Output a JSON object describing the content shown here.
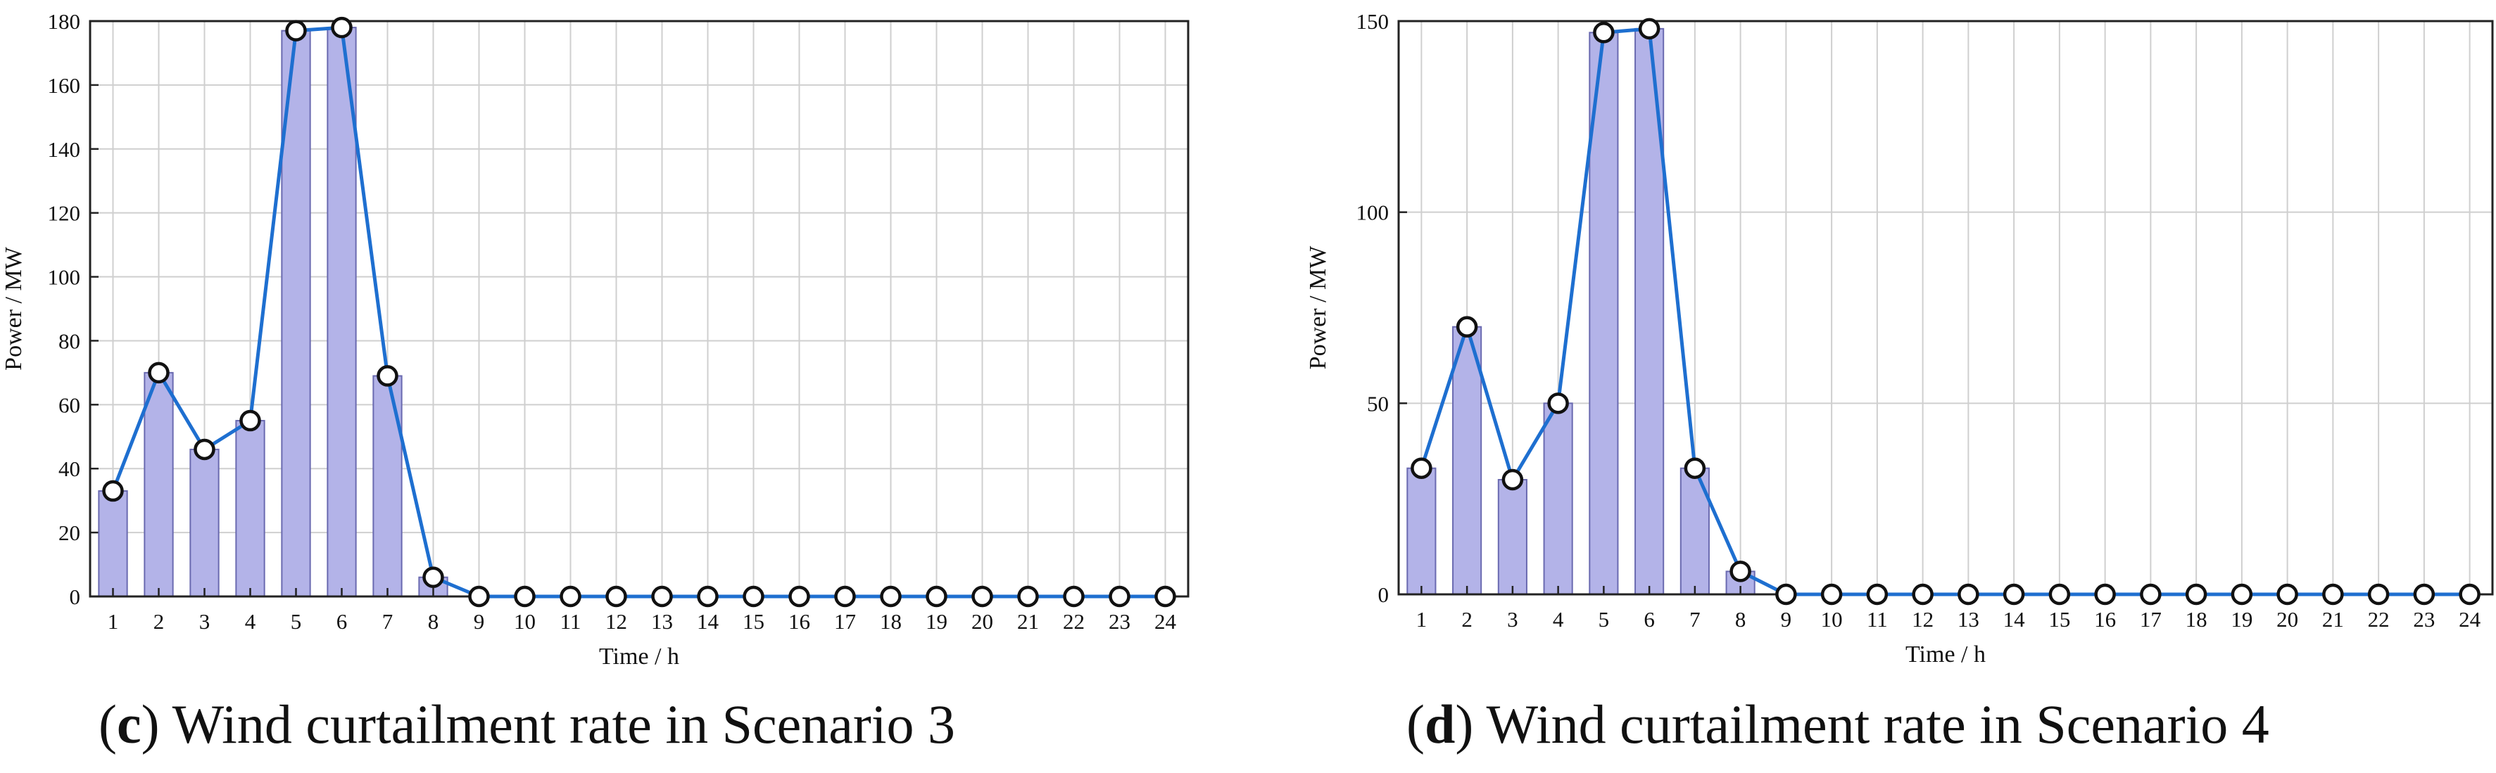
{
  "colors": {
    "bar_fill": "#b3b3e8",
    "bar_stroke": "#6a6ab0",
    "line": "#1e6fd0",
    "marker_fill": "#ffffff",
    "marker_stroke": "#111111",
    "grid": "#cfcfcf",
    "axis": "#222222"
  },
  "captions": [
    {
      "paren_open": "(",
      "letter": "c",
      "paren_close": ")",
      "text": " Wind curtailment rate in Scenario 3"
    },
    {
      "paren_open": "(",
      "letter": "d",
      "paren_close": ")",
      "text": " Wind curtailment rate in Scenario 4"
    }
  ],
  "chart_data": [
    {
      "type": "bar",
      "title": "",
      "xlabel": "Time / h",
      "ylabel": "Power / MW",
      "categories": [
        "1",
        "2",
        "3",
        "4",
        "5",
        "6",
        "7",
        "8",
        "9",
        "10",
        "11",
        "12",
        "13",
        "14",
        "15",
        "16",
        "17",
        "18",
        "19",
        "20",
        "21",
        "22",
        "23",
        "24"
      ],
      "ylim": [
        0,
        180
      ],
      "yticks": [
        0,
        20,
        40,
        60,
        80,
        100,
        120,
        140,
        160,
        180
      ],
      "grid": true,
      "series": [
        {
          "kind": "bar",
          "values": [
            33,
            70,
            46,
            55,
            177,
            178,
            69,
            6,
            0,
            0,
            0,
            0,
            0,
            0,
            0,
            0,
            0,
            0,
            0,
            0,
            0,
            0,
            0,
            0
          ]
        },
        {
          "kind": "line",
          "marker": "circle",
          "values": [
            33,
            70,
            46,
            55,
            177,
            178,
            69,
            6,
            0,
            0,
            0,
            0,
            0,
            0,
            0,
            0,
            0,
            0,
            0,
            0,
            0,
            0,
            0,
            0
          ]
        }
      ]
    },
    {
      "type": "bar",
      "title": "",
      "xlabel": "Time / h",
      "ylabel": "Power / MW",
      "categories": [
        "1",
        "2",
        "3",
        "4",
        "5",
        "6",
        "7",
        "8",
        "9",
        "10",
        "11",
        "12",
        "13",
        "14",
        "15",
        "16",
        "17",
        "18",
        "19",
        "20",
        "21",
        "22",
        "23",
        "24"
      ],
      "ylim": [
        0,
        150
      ],
      "yticks": [
        0,
        50,
        100,
        150
      ],
      "grid": true,
      "series": [
        {
          "kind": "bar",
          "values": [
            33,
            70,
            30,
            50,
            147,
            148,
            33,
            6,
            0,
            0,
            0,
            0,
            0,
            0,
            0,
            0,
            0,
            0,
            0,
            0,
            0,
            0,
            0,
            0
          ]
        },
        {
          "kind": "line",
          "marker": "circle",
          "values": [
            33,
            70,
            30,
            50,
            147,
            148,
            33,
            6,
            0,
            0,
            0,
            0,
            0,
            0,
            0,
            0,
            0,
            0,
            0,
            0,
            0,
            0,
            0,
            0
          ]
        }
      ]
    }
  ]
}
